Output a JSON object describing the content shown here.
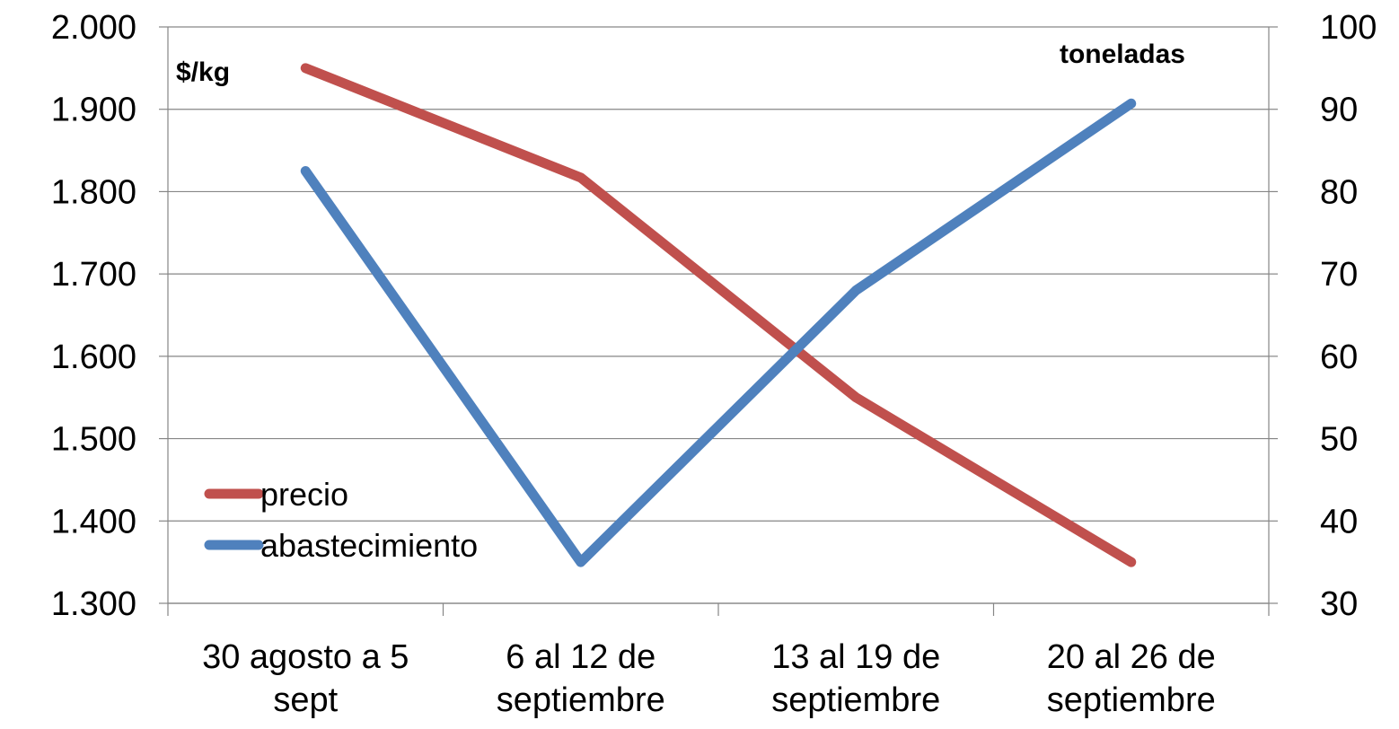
{
  "chart_data": {
    "type": "line",
    "categories": [
      [
        "30 agosto a 5",
        "sept"
      ],
      [
        "6 al 12 de",
        "septiembre"
      ],
      [
        "13 al 19 de",
        "septiembre"
      ],
      [
        "20 al 26 de",
        "septiembre"
      ]
    ],
    "left_axis": {
      "unit_label": "$/kg",
      "range": [
        1300,
        2000
      ],
      "step": 100,
      "tick_labels": [
        "1.300",
        "1.400",
        "1.500",
        "1.600",
        "1.700",
        "1.800",
        "1.900",
        "2.000"
      ]
    },
    "right_axis": {
      "unit_label": "toneladas",
      "range": [
        30,
        100
      ],
      "step": 10,
      "tick_labels": [
        "30",
        "40",
        "50",
        "60",
        "70",
        "80",
        "90",
        "100"
      ]
    },
    "series": [
      {
        "name": "precio",
        "axis": "left",
        "color": "#C0504D",
        "values": [
          1950,
          1817,
          1550,
          1350
        ]
      },
      {
        "name": "abastecimiento",
        "axis": "right",
        "color": "#4F81BD",
        "values": [
          82.5,
          35,
          68,
          90.7
        ]
      }
    ],
    "grid": true,
    "legend_position": "bottom-left"
  }
}
